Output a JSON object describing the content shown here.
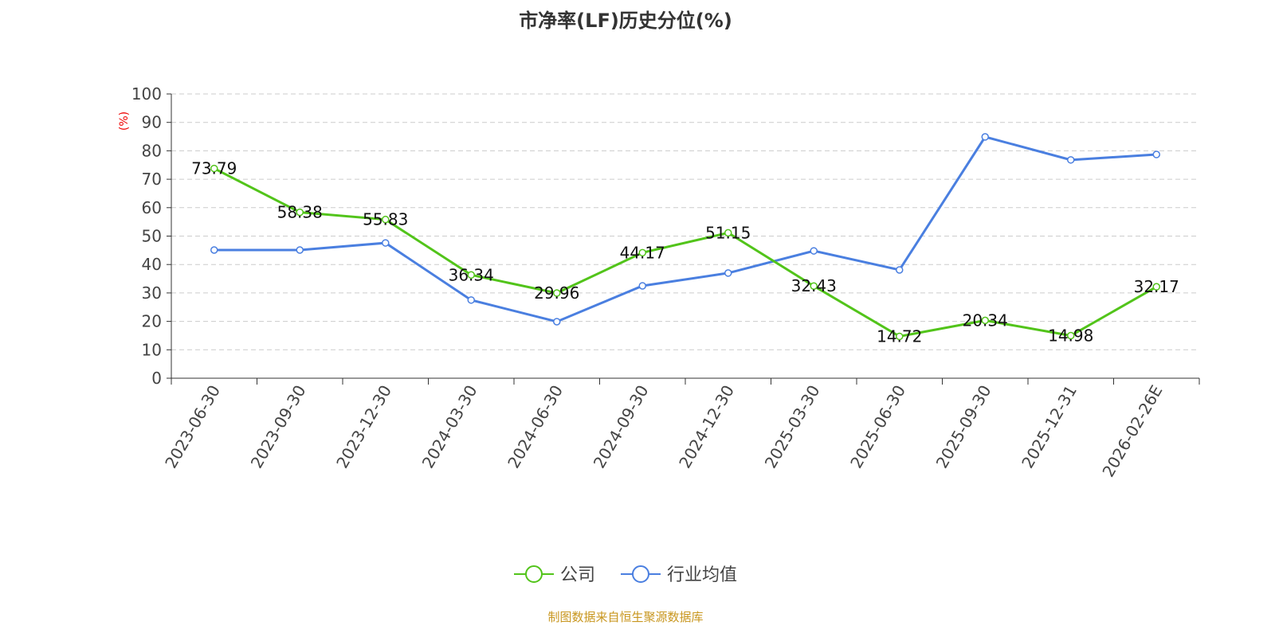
{
  "chart_data": {
    "type": "line",
    "title": "市净率(LF)历史分位(%)",
    "ylabel": "(%)",
    "ylim": [
      0,
      100
    ],
    "yticks": [
      0,
      10,
      20,
      30,
      40,
      50,
      60,
      70,
      80,
      90,
      100
    ],
    "grid": true,
    "legend_position": "bottom",
    "categories": [
      "2023-06-30",
      "2023-09-30",
      "2023-12-30",
      "2024-03-30",
      "2024-06-30",
      "2024-09-30",
      "2024-12-30",
      "2025-03-30",
      "2025-06-30",
      "2025-09-30",
      "2025-12-31",
      "2026-02-26E"
    ],
    "series": [
      {
        "name": "公司",
        "color": "#52c41a",
        "show_labels": true,
        "values": [
          73.79,
          58.38,
          55.83,
          36.34,
          29.96,
          44.17,
          51.15,
          32.43,
          14.72,
          20.34,
          14.98,
          32.17
        ]
      },
      {
        "name": "行业均值",
        "color": "#4a7fe0",
        "show_labels": false,
        "values": [
          45.1,
          45.1,
          47.6,
          27.5,
          19.9,
          32.5,
          37.0,
          44.8,
          38.1,
          84.9,
          76.8,
          78.7
        ]
      }
    ]
  },
  "source": "制图数据来自恒生聚源数据库"
}
